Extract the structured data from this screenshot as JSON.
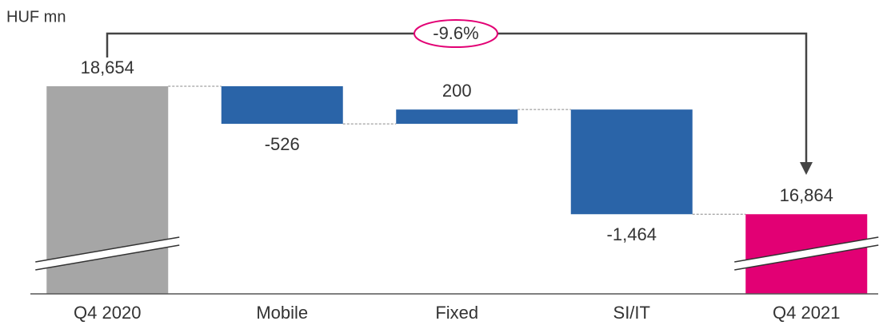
{
  "chart_data": {
    "type": "waterfall",
    "axis_label": "HUF mn",
    "annotation": "-9.6%",
    "categories": [
      "Q4 2020",
      "Mobile",
      "Fixed",
      "SI/IT",
      "Q4 2021"
    ],
    "values": [
      18654,
      -526,
      200,
      -1464,
      16864
    ],
    "value_labels": [
      "18,654",
      "-526",
      "200",
      "-1,464",
      "16,864"
    ],
    "totals": [
      true,
      false,
      false,
      false,
      true
    ],
    "colors": [
      "#a6a6a6",
      "#2a64a8",
      "#2a64a8",
      "#2a64a8",
      "#e20074"
    ],
    "ylim": [
      15750,
      19000
    ]
  }
}
